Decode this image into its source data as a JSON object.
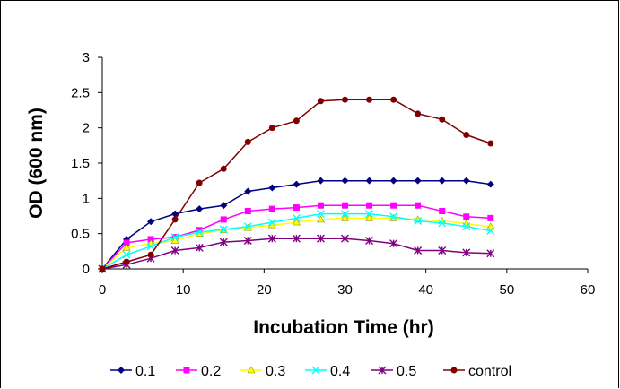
{
  "chart_data": {
    "type": "line",
    "title": "",
    "xlabel": "Incubation Time (hr)",
    "ylabel": "OD (600 nm)",
    "xlim": [
      0,
      60
    ],
    "ylim": [
      0,
      3
    ],
    "xticks": [
      "0",
      "10",
      "20",
      "30",
      "40",
      "50",
      "60"
    ],
    "yticks": [
      "0",
      "0.5",
      "1",
      "1.5",
      "2",
      "2.5",
      "3"
    ],
    "grid": false,
    "legend_position": "bottom",
    "x": [
      0,
      3,
      6,
      9,
      12,
      15,
      18,
      21,
      24,
      27,
      30,
      33,
      36,
      39,
      42,
      45,
      48
    ],
    "series": [
      {
        "name": "0.1",
        "color": "#000080",
        "marker": "diamond",
        "values": [
          0,
          0.42,
          0.67,
          0.78,
          0.85,
          0.9,
          1.1,
          1.15,
          1.2,
          1.25,
          1.25,
          1.25,
          1.25,
          1.25,
          1.25,
          1.25,
          1.2
        ]
      },
      {
        "name": "0.2",
        "color": "#ff00ff",
        "marker": "square",
        "values": [
          0,
          0.37,
          0.42,
          0.45,
          0.55,
          0.7,
          0.82,
          0.85,
          0.87,
          0.9,
          0.9,
          0.9,
          0.9,
          0.9,
          0.82,
          0.74,
          0.72
        ]
      },
      {
        "name": "0.3",
        "color": "#ffff00",
        "marker": "triangle",
        "values": [
          0,
          0.3,
          0.36,
          0.4,
          0.5,
          0.55,
          0.58,
          0.62,
          0.66,
          0.7,
          0.72,
          0.72,
          0.72,
          0.7,
          0.68,
          0.64,
          0.6
        ]
      },
      {
        "name": "0.4",
        "color": "#00ffff",
        "marker": "x",
        "values": [
          0,
          0.2,
          0.32,
          0.45,
          0.52,
          0.56,
          0.6,
          0.66,
          0.72,
          0.78,
          0.78,
          0.78,
          0.74,
          0.68,
          0.65,
          0.6,
          0.54
        ]
      },
      {
        "name": "0.5",
        "color": "#800080",
        "marker": "star",
        "values": [
          0,
          0.06,
          0.15,
          0.26,
          0.3,
          0.38,
          0.4,
          0.43,
          0.43,
          0.43,
          0.43,
          0.4,
          0.36,
          0.26,
          0.26,
          0.23,
          0.22
        ]
      },
      {
        "name": "control",
        "color": "#800000",
        "marker": "circle",
        "values": [
          0,
          0.1,
          0.2,
          0.7,
          1.22,
          1.42,
          1.8,
          2.0,
          2.1,
          2.38,
          2.4,
          2.4,
          2.4,
          2.2,
          2.12,
          1.9,
          1.78
        ]
      }
    ]
  }
}
